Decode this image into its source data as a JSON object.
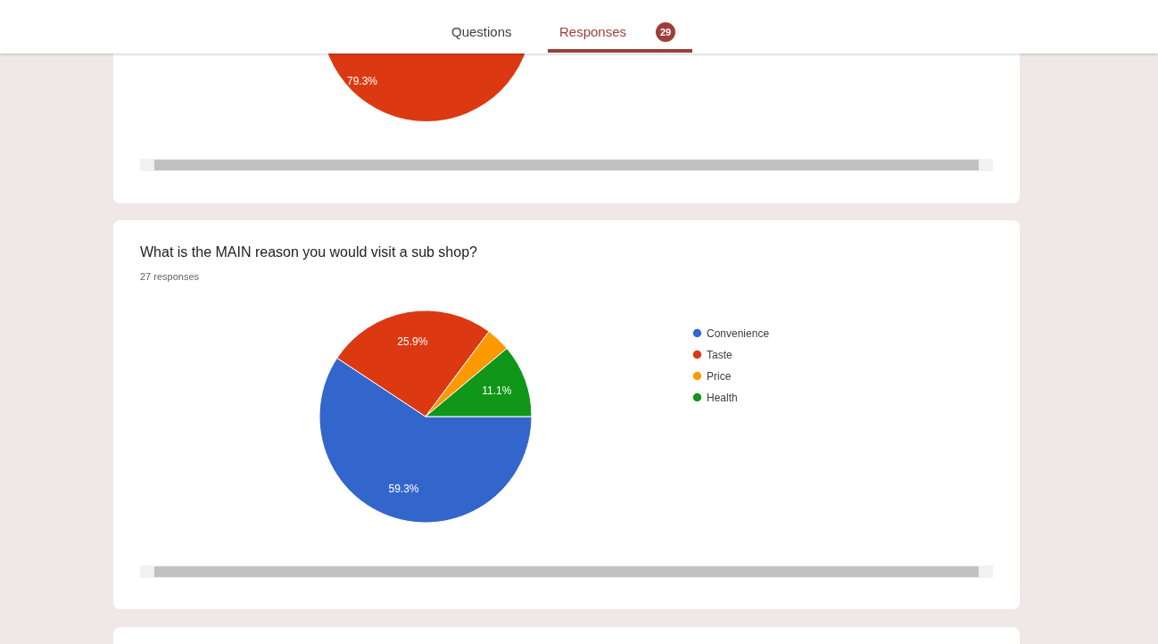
{
  "chart_data": {
    "type": "pie",
    "title": "What is the MAIN reason you would visit a sub shop?",
    "subtitle": "27 responses",
    "categories": [
      "Convenience",
      "Taste",
      "Price",
      "Health"
    ],
    "values": [
      59.3,
      25.9,
      3.7,
      11.1
    ],
    "colors": [
      "#3366cc",
      "#dc3912",
      "#ff9900",
      "#109618"
    ],
    "value_labels": [
      "59.3%",
      "25.9%",
      null,
      "11.1%"
    ],
    "legend": "right",
    "annotations": [
      "Questions",
      "Responses",
      "29",
      "79.3%"
    ]
  }
}
